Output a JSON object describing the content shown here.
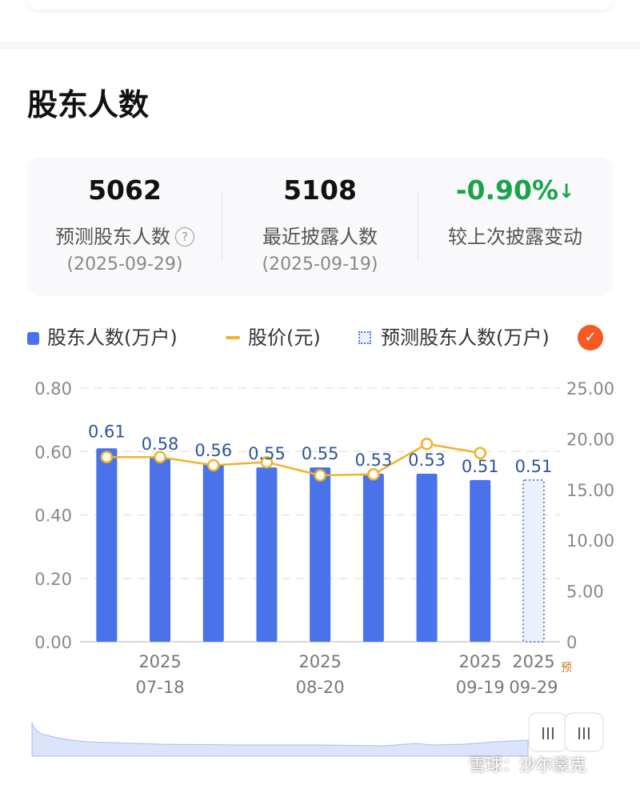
{
  "section": {
    "title": "股东人数"
  },
  "stats": [
    {
      "value": "5062",
      "label": "预测股东人数",
      "date": "(2025-09-29)",
      "help_icon": "question-circle-icon"
    },
    {
      "value": "5108",
      "label": "最近披露人数",
      "date": "(2025-09-19)"
    },
    {
      "value": "-0.90%",
      "label": "较上次披露变动",
      "arrow": "↓",
      "color": "#1aa34a"
    }
  ],
  "legend": {
    "holders": "股东人数(万户)",
    "price": "股价(元)",
    "predicted": "预测股东人数(万户)",
    "check_icon": "✓"
  },
  "watermark": "雪球：沙尔豪克",
  "slider": {
    "handle_icon": "III"
  },
  "colors": {
    "bar": "#4a72ea",
    "line": "#f0b429",
    "predicted_fill": "#e9f1ff",
    "badge": "#f45a22",
    "down": "#1aa34a"
  },
  "chart_data": {
    "type": "bar",
    "series": [
      {
        "name": "股东人数(万户)",
        "type": "bar",
        "axis": "left",
        "values": [
          0.61,
          0.58,
          0.56,
          0.55,
          0.55,
          0.53,
          0.53,
          0.51,
          null
        ],
        "labels": [
          "0.61",
          "0.58",
          "0.56",
          "0.55",
          "0.55",
          "0.53",
          "0.53",
          "0.51",
          null
        ]
      },
      {
        "name": "股价(元)",
        "type": "line",
        "axis": "right",
        "values": [
          18.2,
          18.2,
          17.4,
          17.7,
          16.4,
          16.5,
          19.5,
          18.6,
          null
        ]
      },
      {
        "name": "预测股东人数(万户)",
        "type": "bar-predicted",
        "axis": "left",
        "values": [
          null,
          null,
          null,
          null,
          null,
          null,
          null,
          null,
          0.51
        ],
        "labels": [
          null,
          null,
          null,
          null,
          null,
          null,
          null,
          null,
          "0.51"
        ]
      }
    ],
    "x_ticks": [
      {
        "index": 1,
        "lines": [
          "2025",
          "07-18"
        ]
      },
      {
        "index": 4,
        "lines": [
          "2025",
          "08-20"
        ]
      },
      {
        "index": 7,
        "lines": [
          "2025",
          "09-19"
        ]
      },
      {
        "index": 8,
        "lines": [
          "2025",
          "09-29"
        ],
        "tag": "预"
      }
    ],
    "y_left": {
      "min": 0,
      "max": 0.8,
      "ticks": [
        "0.00",
        "0.20",
        "0.40",
        "0.60",
        "0.80"
      ]
    },
    "y_right": {
      "min": 0,
      "max": 25,
      "ticks": [
        "0",
        "5.00",
        "10.00",
        "15.00",
        "20.00",
        "25.00"
      ]
    },
    "grid": true
  }
}
